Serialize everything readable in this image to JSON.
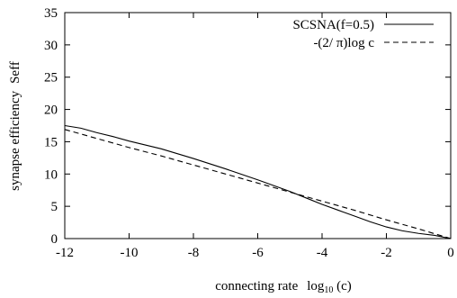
{
  "chart_data": {
    "type": "line",
    "xlabel_main": "connecting rate",
    "xlabel_log": "log",
    "xlabel_sub": "10",
    "xlabel_arg": " (c)",
    "ylabel": "synapse efficiency",
    "ylabel_symbol": "Seff",
    "xlim": [
      -12,
      0
    ],
    "ylim": [
      0,
      35
    ],
    "x_ticks": [
      -12,
      -10,
      -8,
      -6,
      -4,
      -2,
      0
    ],
    "y_ticks": [
      0,
      5,
      10,
      15,
      20,
      25,
      30,
      35
    ],
    "grid": false,
    "legend_position": "top-right",
    "series": [
      {
        "name": "SCSNA(f=0.5)",
        "style": "solid",
        "color": "#000000",
        "x": [
          -12,
          -11.5,
          -11,
          -10.5,
          -10,
          -9,
          -8,
          -7,
          -6,
          -5,
          -4.5,
          -4,
          -3.5,
          -3,
          -2.5,
          -2,
          -1.5,
          -1,
          -0.5,
          0
        ],
        "y": [
          17.5,
          17.1,
          16.4,
          15.8,
          15.1,
          13.9,
          12.4,
          10.8,
          9.1,
          7.3,
          6.3,
          5.3,
          4.4,
          3.5,
          2.6,
          1.8,
          1.2,
          0.8,
          0.5,
          0.0
        ]
      },
      {
        "name": "-(2/ π)log c",
        "style": "dashed",
        "color": "#000000",
        "x": [
          -12,
          -11,
          -10,
          -9,
          -8,
          -7,
          -6,
          -5,
          -4,
          -3,
          -2,
          -1,
          0
        ],
        "y": [
          16.9,
          15.5,
          14.1,
          12.8,
          11.4,
          10.0,
          8.6,
          7.2,
          5.8,
          4.4,
          2.9,
          1.5,
          0.0
        ]
      }
    ]
  }
}
